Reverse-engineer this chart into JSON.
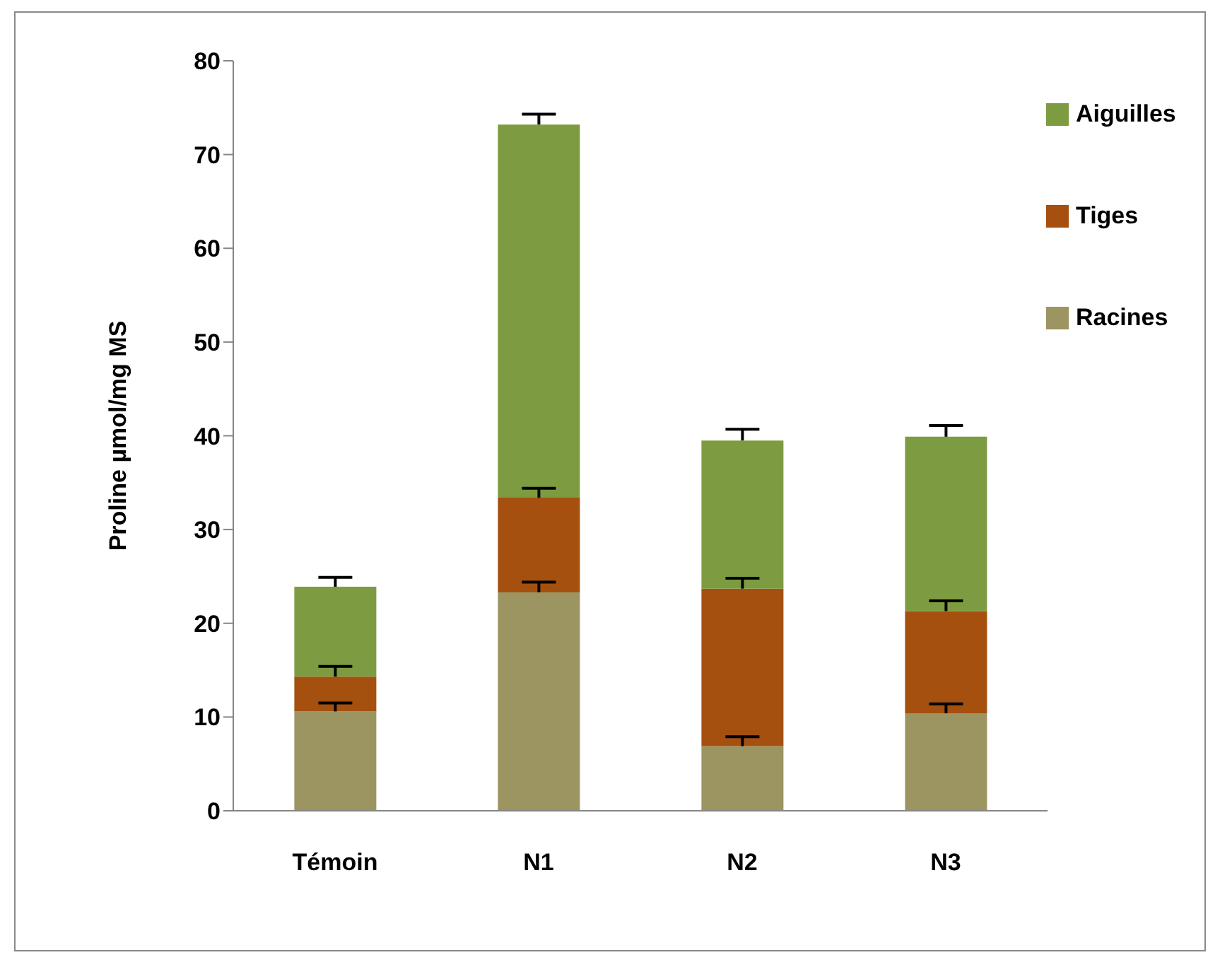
{
  "chart_data": {
    "type": "bar",
    "stacked": true,
    "ylabel": "Proline µmol/mg MS",
    "categories": [
      "Témoin",
      "N1",
      "N2",
      "N3"
    ],
    "series": [
      {
        "name": "Racines",
        "color": "#9c9461",
        "values": [
          10.6,
          23.3,
          6.9,
          10.4
        ],
        "errors": [
          [
            10.6,
            11.5
          ],
          [
            23.3,
            24.4
          ],
          [
            6.9,
            7.9
          ],
          [
            10.4,
            11.4
          ]
        ]
      },
      {
        "name": "Tiges",
        "color": "#a5500f",
        "values": [
          3.7,
          10.1,
          16.8,
          10.9
        ],
        "errors": [
          [
            14.3,
            15.4
          ],
          [
            33.4,
            34.4
          ],
          [
            23.7,
            24.8
          ],
          [
            21.3,
            22.4
          ]
        ]
      },
      {
        "name": "Aiguilles",
        "color": "#7d9c41",
        "values": [
          9.6,
          39.8,
          15.8,
          18.6
        ],
        "errors": [
          [
            23.9,
            24.9
          ],
          [
            73.2,
            74.3
          ],
          [
            39.5,
            40.7
          ],
          [
            39.9,
            41.1
          ]
        ]
      }
    ],
    "ylim": [
      0,
      80
    ],
    "yticks": [
      0,
      10,
      20,
      30,
      40,
      50,
      60,
      70,
      80
    ],
    "grid": false,
    "legend": "top right"
  }
}
